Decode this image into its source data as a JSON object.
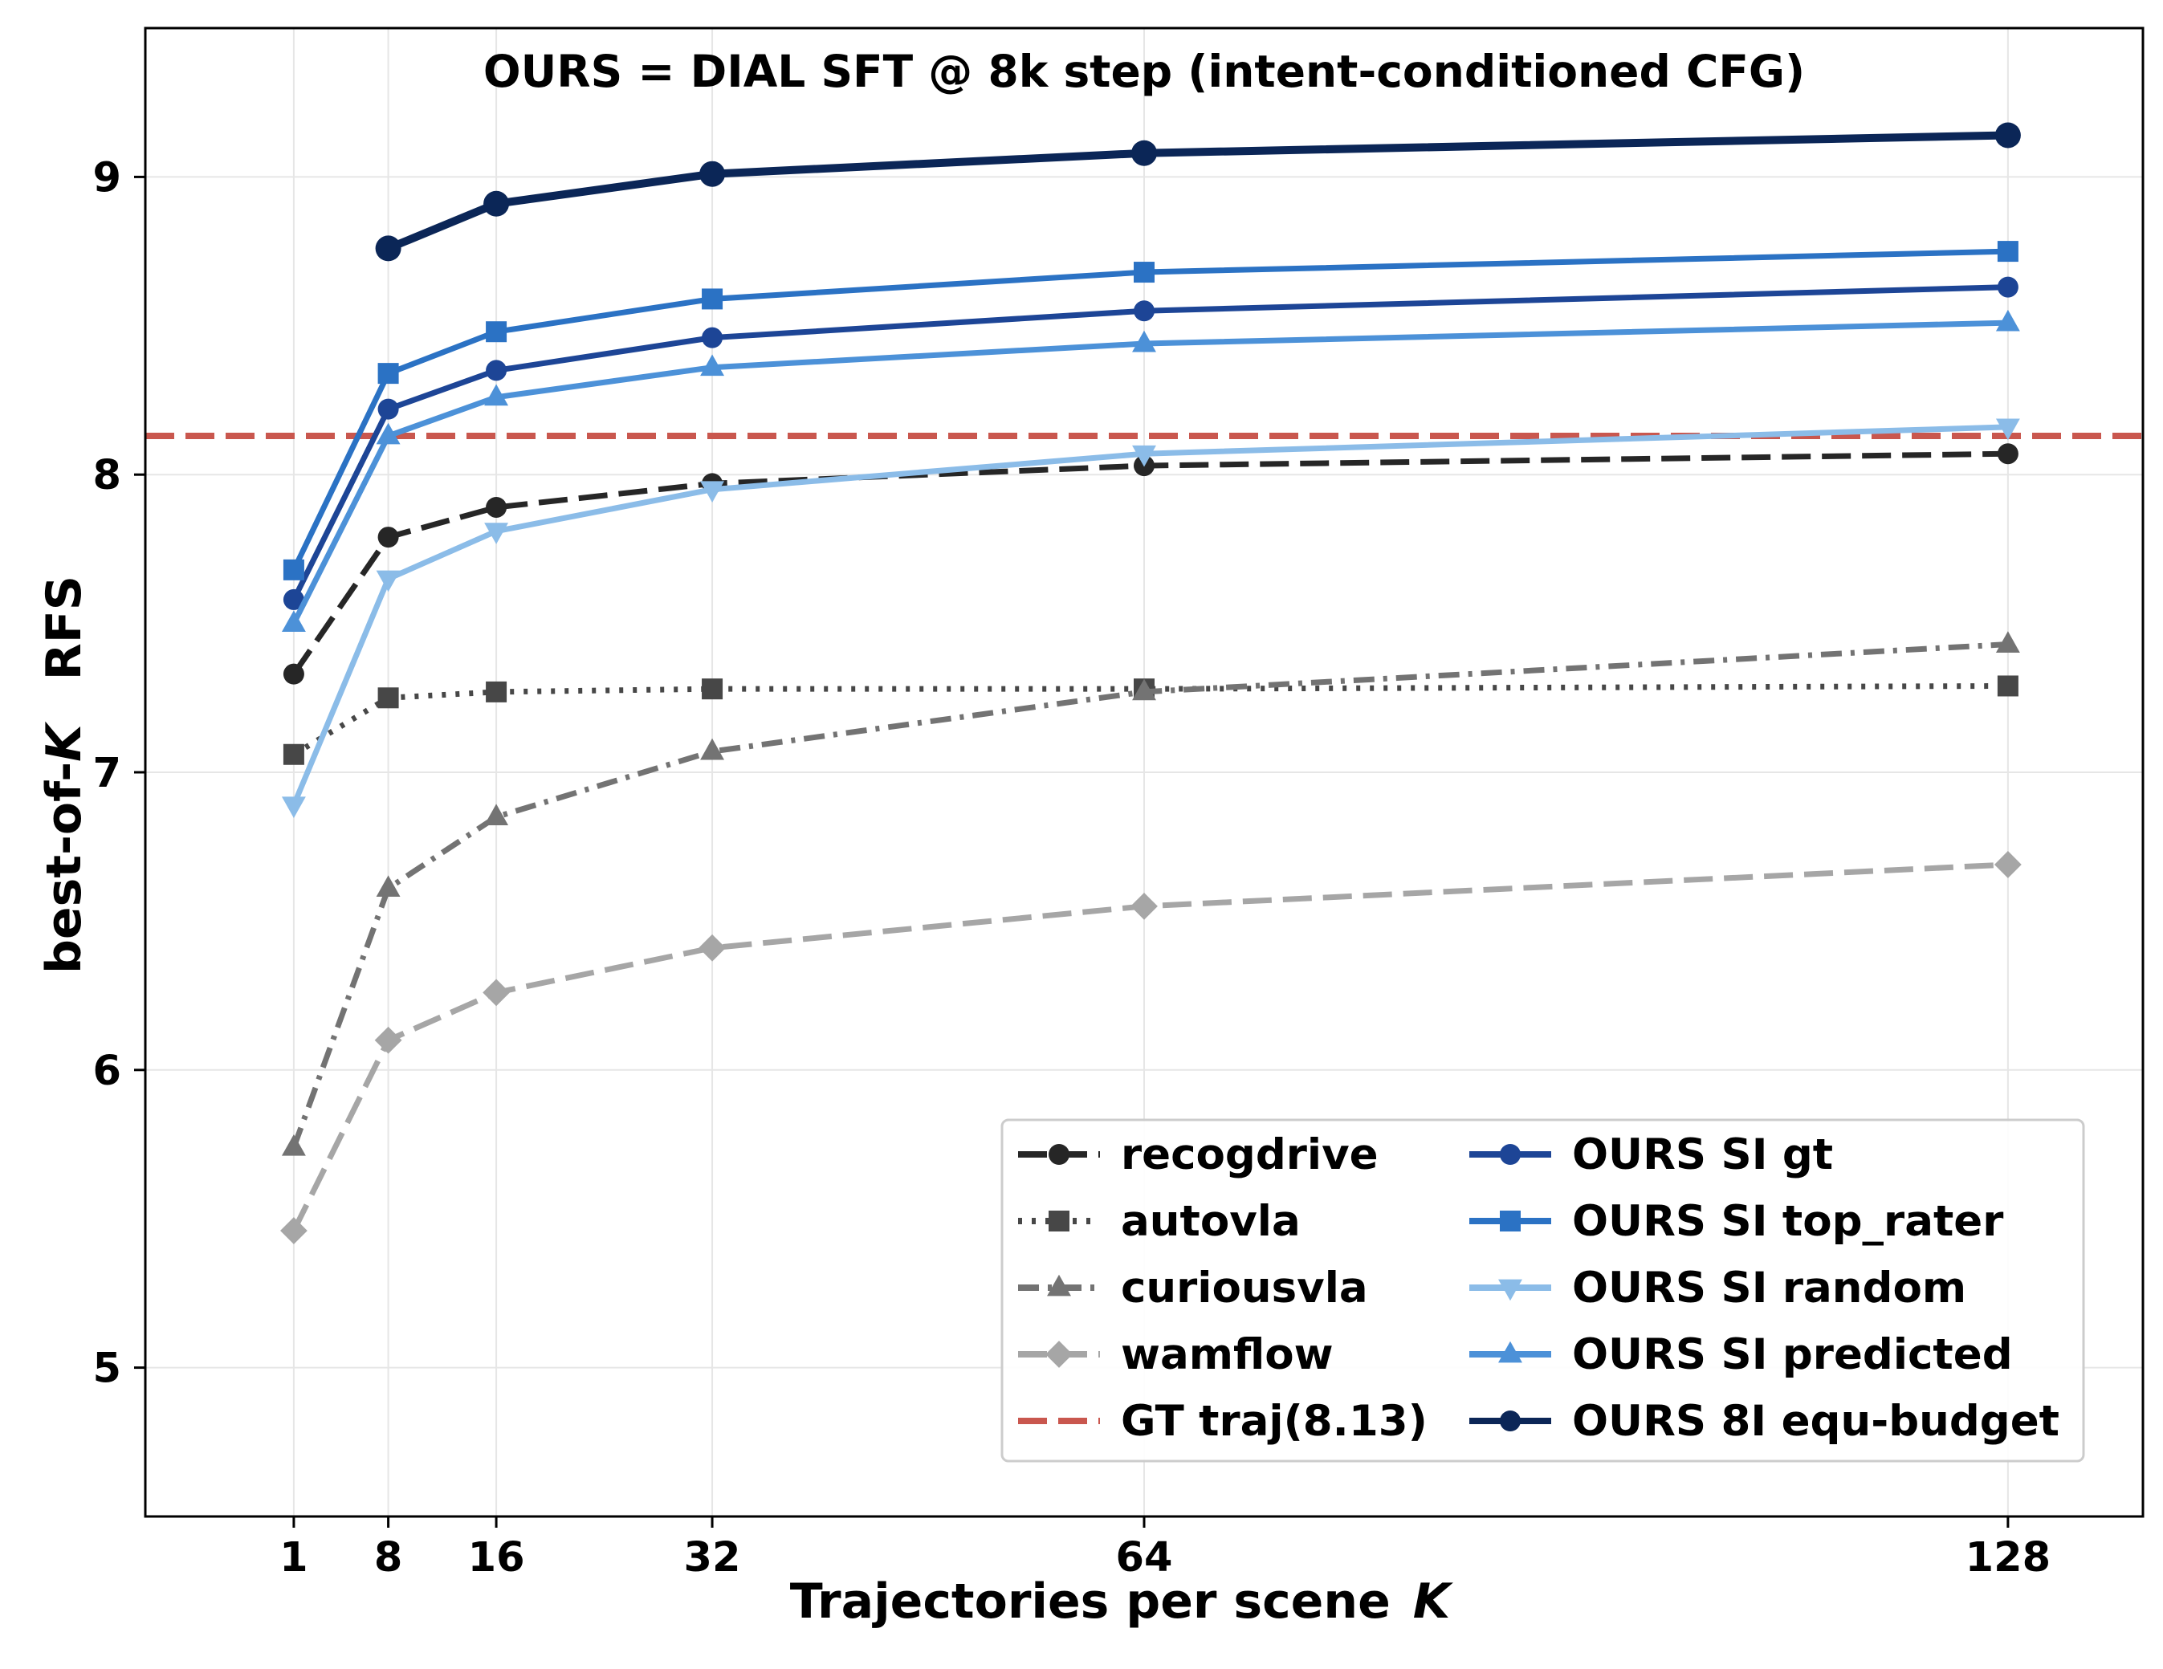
{
  "chart_data": {
    "type": "line",
    "title": "OURS = DIAL SFT @ 8k step  (intent-conditioned CFG)",
    "xlabel_text": "Trajectories per scene",
    "xlabel_var": "K",
    "ylabel_prefix": "best-of-",
    "ylabel_var": "K",
    "ylabel_suffix": "RFS",
    "xlim": [
      -10,
      138
    ],
    "ylim": [
      4.5,
      9.5
    ],
    "x_ticks": [
      1,
      8,
      16,
      32,
      64,
      128
    ],
    "y_ticks": [
      5,
      6,
      7,
      8,
      9
    ],
    "grid": true,
    "legend_position": "lower-right",
    "reference_line": {
      "name": "GT traj(8.13)",
      "y": 8.13,
      "color": "#c9574e",
      "dash": "dashed"
    },
    "series": [
      {
        "name": "recogdrive",
        "color": "#262626",
        "dash": "dashed",
        "marker": "circle",
        "x": [
          1,
          8,
          16,
          32,
          64,
          128
        ],
        "values": [
          7.33,
          7.79,
          7.89,
          7.97,
          8.03,
          8.07
        ]
      },
      {
        "name": "autovla",
        "color": "#474747",
        "dash": "dotted",
        "marker": "square",
        "x": [
          1,
          8,
          16,
          32,
          64,
          128
        ],
        "values": [
          7.06,
          7.25,
          7.27,
          7.28,
          7.28,
          7.29
        ]
      },
      {
        "name": "curiousvla",
        "color": "#737373",
        "dash": "dashdot",
        "marker": "triangle-up",
        "x": [
          1,
          8,
          16,
          32,
          64,
          128
        ],
        "values": [
          5.74,
          6.61,
          6.85,
          7.07,
          7.27,
          7.43
        ]
      },
      {
        "name": "wamflow",
        "color": "#a6a6a6",
        "dash": "dashed",
        "marker": "diamond",
        "x": [
          1,
          8,
          16,
          32,
          64,
          128
        ],
        "values": [
          5.46,
          6.1,
          6.26,
          6.41,
          6.55,
          6.69
        ]
      },
      {
        "name": "OURS SI gt",
        "color": "#1d4596",
        "dash": "solid",
        "marker": "circle",
        "x": [
          1,
          8,
          16,
          32,
          64,
          128
        ],
        "values": [
          7.58,
          8.22,
          8.35,
          8.46,
          8.55,
          8.63
        ]
      },
      {
        "name": "OURS SI top_rater",
        "color": "#2b72c4",
        "dash": "solid",
        "marker": "square",
        "x": [
          1,
          8,
          16,
          32,
          64,
          128
        ],
        "values": [
          7.68,
          8.34,
          8.48,
          8.59,
          8.68,
          8.75
        ]
      },
      {
        "name": "OURS SI random",
        "color": "#8bbce8",
        "dash": "solid",
        "marker": "triangle-down",
        "x": [
          1,
          8,
          16,
          32,
          64,
          128
        ],
        "values": [
          6.89,
          7.65,
          7.81,
          7.95,
          8.07,
          8.16
        ]
      },
      {
        "name": "OURS SI predicted",
        "color": "#4c91d8",
        "dash": "solid",
        "marker": "triangle-up",
        "x": [
          1,
          8,
          16,
          32,
          64,
          128
        ],
        "values": [
          7.5,
          8.13,
          8.26,
          8.36,
          8.44,
          8.51
        ]
      },
      {
        "name": "OURS 8I equ-budget",
        "color": "#0b2657",
        "dash": "solid",
        "marker": "circle",
        "x": [
          8,
          16,
          32,
          64,
          128
        ],
        "values": [
          8.76,
          8.91,
          9.01,
          9.08,
          9.14
        ]
      }
    ]
  }
}
